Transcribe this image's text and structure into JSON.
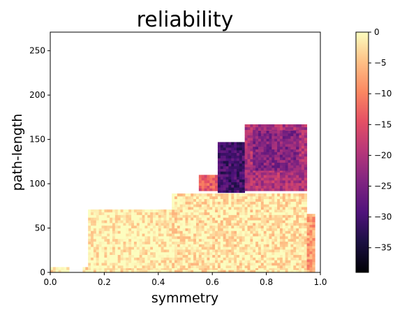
{
  "chart_data": {
    "type": "heatmap",
    "title": "reliability",
    "xlabel": "symmetry",
    "ylabel": "path-length",
    "xlim": [
      0.0,
      1.0
    ],
    "ylim": [
      0,
      271
    ],
    "xticks": [
      "0.0",
      "0.2",
      "0.4",
      "0.6",
      "0.8",
      "1.0"
    ],
    "xtick_values": [
      0.0,
      0.2,
      0.4,
      0.6,
      0.8,
      1.0
    ],
    "yticks": [
      "0",
      "50",
      "100",
      "150",
      "200",
      "250"
    ],
    "ytick_values": [
      0,
      50,
      100,
      150,
      200,
      250
    ],
    "colormap": "magma",
    "colorbar": {
      "range": [
        -39,
        0
      ],
      "ticks": [
        "0",
        "−5",
        "−10",
        "−15",
        "−20",
        "−25",
        "−30",
        "−35"
      ],
      "tick_values": [
        0,
        -5,
        -10,
        -15,
        -20,
        -25,
        -30,
        -35
      ]
    },
    "cell_size": {
      "dx": 0.01,
      "dy": 3
    },
    "regions": [
      {
        "x_range": [
          0.0,
          0.07
        ],
        "y_range": [
          0,
          6
        ],
        "value": -1
      },
      {
        "x_range": [
          0.12,
          0.95
        ],
        "y_range": [
          0,
          5
        ],
        "value": -2
      },
      {
        "x_range": [
          0.14,
          0.45
        ],
        "y_range": [
          5,
          70
        ],
        "value": -1
      },
      {
        "x_range": [
          0.45,
          0.95
        ],
        "y_range": [
          5,
          88
        ],
        "value": -2
      },
      {
        "x_range": [
          0.95,
          0.98
        ],
        "y_range": [
          0,
          65
        ],
        "value": -8
      },
      {
        "x_range": [
          0.55,
          0.62
        ],
        "y_range": [
          92,
          108
        ],
        "value": -14
      },
      {
        "x_range": [
          0.62,
          0.72
        ],
        "y_range": [
          90,
          145
        ],
        "value": -30
      },
      {
        "x_range": [
          0.72,
          0.95
        ],
        "y_range": [
          92,
          165
        ],
        "value": -20
      },
      {
        "x_range": [
          0.75,
          0.92
        ],
        "y_range": [
          115,
          160
        ],
        "value": -24
      }
    ]
  }
}
